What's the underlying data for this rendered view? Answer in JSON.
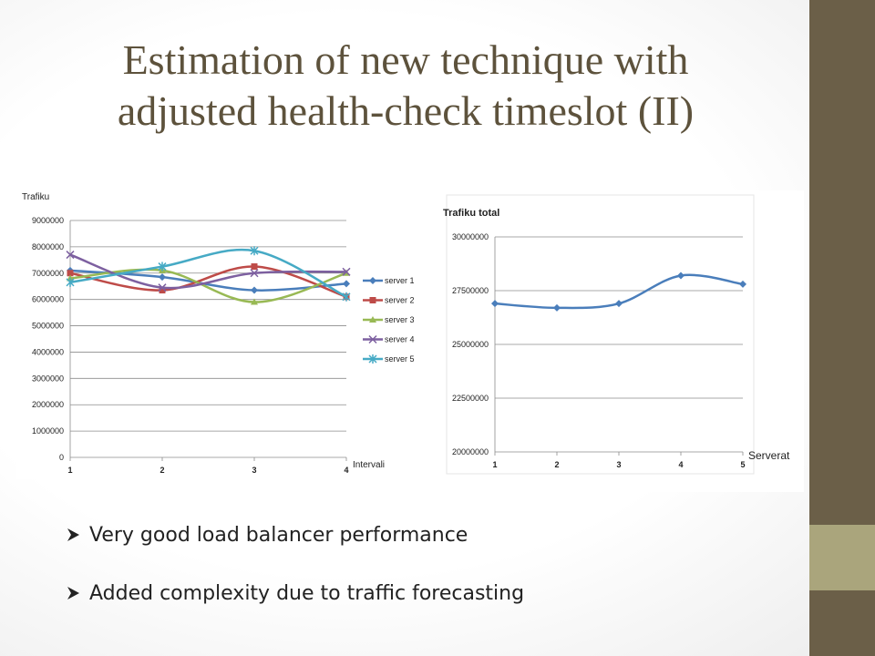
{
  "slide": {
    "title_line1": "Estimation of new technique with",
    "title_line2": "adjusted health-check timeslot (II)",
    "bullets": [
      "Very good load balancer performance",
      "Added complexity due to traffic forecasting"
    ],
    "colors": {
      "text": "#5d523c",
      "sidebar": "#6b5f48",
      "sidebar_accent": "#aaa57c"
    }
  },
  "chart_data": [
    {
      "type": "line",
      "ylabel": "Trafiku",
      "xlabel": "Intervali",
      "categories": [
        "1",
        "2",
        "3",
        "4"
      ],
      "ylim": [
        0,
        9000000
      ],
      "yticks": [
        "0",
        "1000000",
        "2000000",
        "3000000",
        "4000000",
        "5000000",
        "6000000",
        "7000000",
        "8000000",
        "9000000"
      ],
      "grid": true,
      "legend": "right",
      "series": [
        {
          "name": "server 1",
          "color": "#4a7ebb",
          "marker": "diamond",
          "values": [
            7100000,
            6850000,
            6350000,
            6600000
          ]
        },
        {
          "name": "server 2",
          "color": "#be4b48",
          "marker": "square",
          "values": [
            7000000,
            6350000,
            7250000,
            6100000
          ]
        },
        {
          "name": "server 3",
          "color": "#98b954",
          "marker": "triangle",
          "values": [
            6800000,
            7100000,
            5900000,
            7000000
          ]
        },
        {
          "name": "server 4",
          "color": "#7d60a0",
          "marker": "x",
          "values": [
            7700000,
            6450000,
            7000000,
            7050000
          ]
        },
        {
          "name": "server 5",
          "color": "#46aac5",
          "marker": "star",
          "values": [
            6650000,
            7250000,
            7850000,
            6100000
          ]
        }
      ]
    },
    {
      "type": "line",
      "title": "Trafiku total",
      "xlabel": "Serverat",
      "categories": [
        "1",
        "2",
        "3",
        "4",
        "5"
      ],
      "ylim": [
        20000000,
        30000000
      ],
      "yticks": [
        "20000000",
        "22500000",
        "25000000",
        "27500000",
        "30000000"
      ],
      "grid": true,
      "series": [
        {
          "name": "",
          "color": "#4a7ebb",
          "marker": "diamond",
          "values": [
            26900000,
            26700000,
            26900000,
            28200000,
            27800000
          ]
        }
      ]
    }
  ]
}
